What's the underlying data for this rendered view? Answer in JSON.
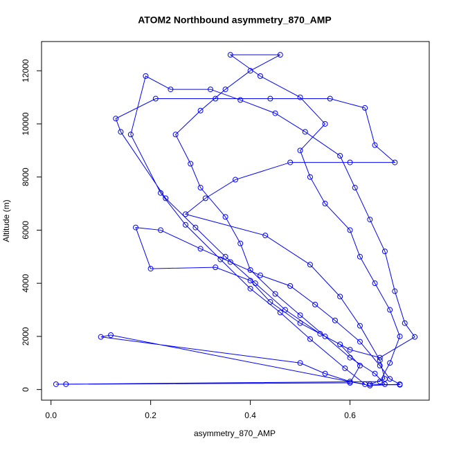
{
  "chart_data": {
    "type": "line",
    "markers": true,
    "title": "ATOM2 Northbound asymmetry_870_AMP",
    "x_label": "asymmetry_870_AMP",
    "y_label": "Altitude (m)",
    "color": "#0000ff",
    "xlim": [
      -0.019,
      0.759
    ],
    "ylim": [
      -400,
      13100
    ],
    "xticks": [
      {
        "value": 0,
        "label": "0.0"
      },
      0.2,
      0.4,
      0.6
    ],
    "yticks": [
      0,
      2000,
      4000,
      6000,
      8000,
      10000,
      12000
    ],
    "x": [
      0.67,
      0.65,
      0.6,
      0.55,
      0.5,
      0.45,
      0.4,
      0.38,
      0.35,
      0.3,
      0.28,
      0.25,
      0.3,
      0.35,
      0.4,
      0.46,
      0.36,
      0.42,
      0.5,
      0.55,
      0.5,
      0.52,
      0.55,
      0.6,
      0.62,
      0.65,
      0.68,
      0.7,
      0.68,
      0.66,
      0.01,
      0.03,
      0.6,
      0.62,
      0.58,
      0.5,
      0.44,
      0.4,
      0.33,
      0.2,
      0.17,
      0.22,
      0.3,
      0.36,
      0.42,
      0.48,
      0.53,
      0.57,
      0.62,
      0.66,
      0.68,
      0.7,
      0.64,
      0.12,
      0.1,
      0.5,
      0.55,
      0.6,
      0.63,
      0.59,
      0.52,
      0.46,
      0.4,
      0.34,
      0.27,
      0.22,
      0.16,
      0.19,
      0.24,
      0.32,
      0.38,
      0.45,
      0.51,
      0.58,
      0.61,
      0.64,
      0.67,
      0.69,
      0.71,
      0.73,
      0.66,
      0.6,
      0.54,
      0.47,
      0.41,
      0.35,
      0.29,
      0.23,
      0.14,
      0.13,
      0.21,
      0.33,
      0.44,
      0.56,
      0.63,
      0.65,
      0.69,
      0.6,
      0.48,
      0.37,
      0.31,
      0.27,
      0.43,
      0.52,
      0.58,
      0.62,
      0.66,
      0.67,
      0.64,
      0.7
    ],
    "values": [
      200,
      600,
      1200,
      2000,
      2800,
      3600,
      4500,
      5500,
      6500,
      7600,
      8500,
      9600,
      10500,
      11300,
      12000,
      12600,
      12600,
      11800,
      11000,
      10000,
      9000,
      8000,
      7000,
      6000,
      5000,
      4000,
      3000,
      2000,
      1000,
      300,
      200,
      200,
      250,
      900,
      1700,
      2500,
      3300,
      4100,
      4600,
      4550,
      6100,
      6000,
      5300,
      4800,
      4300,
      3900,
      3200,
      2600,
      1800,
      900,
      400,
      200,
      150,
      2050,
      1980,
      1000,
      600,
      300,
      200,
      800,
      1900,
      2900,
      3800,
      4900,
      6200,
      7400,
      9600,
      11800,
      11300,
      11300,
      10900,
      10400,
      9700,
      8800,
      7600,
      6400,
      5200,
      3700,
      2500,
      1980,
      1200,
      1500,
      2100,
      3000,
      4000,
      5000,
      6100,
      7200,
      9700,
      10200,
      10950,
      10950,
      10950,
      10950,
      10600,
      9200,
      8550,
      8550,
      8550,
      7900,
      7200,
      6600,
      5800,
      4700,
      3500,
      2400,
      1100,
      400,
      200,
      180
    ]
  }
}
